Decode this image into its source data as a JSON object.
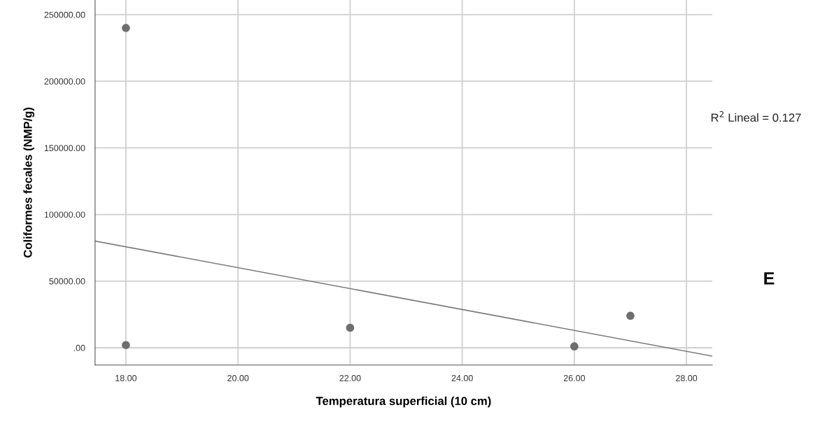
{
  "chart_data": {
    "type": "scatter",
    "xlabel": "Temperatura superficial (10 cm)",
    "ylabel": "Coliformes fecales (NMP/g)",
    "series": [
      {
        "marker": "circle",
        "color": "#6e6e6e",
        "x": [
          18,
          18,
          22,
          26,
          27
        ],
        "values": [
          240000,
          2000,
          15000,
          1000,
          24000
        ]
      },
      {
        "type": "line",
        "color": "#7a7a7a",
        "x": [
          17.45,
          28.46
        ],
        "values": [
          80100,
          -6300
        ]
      }
    ],
    "xlim": [
      17.45,
      28.46
    ],
    "ylim": [
      -13000,
      261000
    ],
    "xticks": [
      {
        "value": 18,
        "label": "18.00"
      },
      {
        "value": 20,
        "label": "20.00"
      },
      {
        "value": 22,
        "label": "22.00"
      },
      {
        "value": 24,
        "label": "24.00"
      },
      {
        "value": 26,
        "label": "26.00"
      },
      {
        "value": 28,
        "label": "28.00"
      }
    ],
    "yticks": [
      {
        "value": 0,
        "label": ".00"
      },
      {
        "value": 50000,
        "label": "50000.00"
      },
      {
        "value": 100000,
        "label": "100000.00"
      },
      {
        "value": 150000,
        "label": "150000.00"
      },
      {
        "value": 200000,
        "label": "200000.00"
      },
      {
        "value": 250000,
        "label": "250000.00"
      }
    ],
    "grid": true,
    "annotations": [
      "R$^{2}$ Lineal = 0.127",
      "E"
    ]
  }
}
